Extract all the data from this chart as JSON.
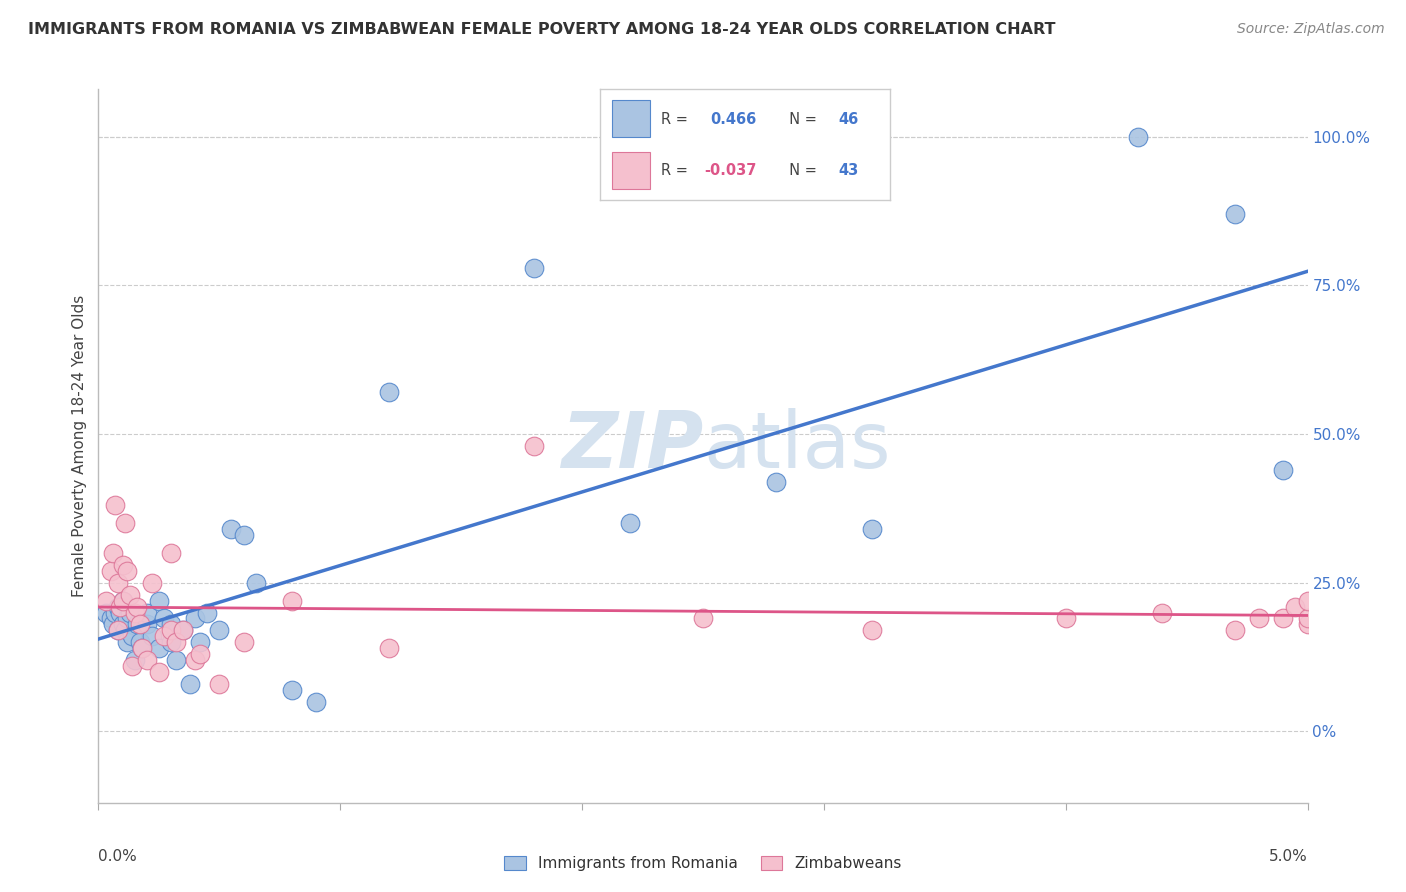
{
  "title": "IMMIGRANTS FROM ROMANIA VS ZIMBABWEAN FEMALE POVERTY AMONG 18-24 YEAR OLDS CORRELATION CHART",
  "source": "Source: ZipAtlas.com",
  "ylabel": "Female Poverty Among 18-24 Year Olds",
  "right_ytick_vals": [
    0.0,
    0.25,
    0.5,
    0.75,
    1.0
  ],
  "right_ytick_labels": [
    "0%",
    "25.0%",
    "50.0%",
    "75.0%",
    "100.0%"
  ],
  "legend_r1": "R =  0.466",
  "legend_n1": "N = 46",
  "legend_r2": "R = -0.037",
  "legend_n2": "N = 43",
  "blue_color": "#aac4e2",
  "blue_edge_color": "#5588cc",
  "blue_line_color": "#4477cc",
  "pink_color": "#f5c0ce",
  "pink_edge_color": "#dd7799",
  "pink_line_color": "#dd5588",
  "watermark_color": "#d5e2ef",
  "background_color": "#ffffff",
  "ylim_min": -0.12,
  "ylim_max": 1.08,
  "xlim_min": 0.0,
  "xlim_max": 0.05,
  "blue_scatter_x": [
    0.0003,
    0.0005,
    0.0006,
    0.0007,
    0.0008,
    0.0008,
    0.0009,
    0.001,
    0.001,
    0.0011,
    0.0012,
    0.0012,
    0.0013,
    0.0014,
    0.0015,
    0.0016,
    0.0017,
    0.0018,
    0.002,
    0.002,
    0.0022,
    0.0025,
    0.0025,
    0.0027,
    0.003,
    0.003,
    0.0032,
    0.0035,
    0.0038,
    0.004,
    0.0042,
    0.0045,
    0.005,
    0.0055,
    0.006,
    0.0065,
    0.008,
    0.009,
    0.012,
    0.018,
    0.022,
    0.028,
    0.032,
    0.043,
    0.047,
    0.049
  ],
  "blue_scatter_y": [
    0.2,
    0.19,
    0.18,
    0.2,
    0.21,
    0.17,
    0.2,
    0.18,
    0.22,
    0.17,
    0.19,
    0.15,
    0.2,
    0.16,
    0.12,
    0.18,
    0.15,
    0.14,
    0.18,
    0.2,
    0.16,
    0.22,
    0.14,
    0.19,
    0.15,
    0.18,
    0.12,
    0.17,
    0.08,
    0.19,
    0.15,
    0.2,
    0.17,
    0.34,
    0.33,
    0.25,
    0.07,
    0.05,
    0.57,
    0.78,
    0.35,
    0.42,
    0.34,
    1.0,
    0.87,
    0.44
  ],
  "pink_scatter_x": [
    0.0003,
    0.0005,
    0.0006,
    0.0007,
    0.0008,
    0.0008,
    0.0009,
    0.001,
    0.001,
    0.0011,
    0.0012,
    0.0013,
    0.0014,
    0.0015,
    0.0016,
    0.0017,
    0.0018,
    0.002,
    0.0022,
    0.0025,
    0.0027,
    0.003,
    0.003,
    0.0032,
    0.0035,
    0.004,
    0.0042,
    0.005,
    0.006,
    0.008,
    0.012,
    0.018,
    0.025,
    0.032,
    0.04,
    0.044,
    0.047,
    0.048,
    0.049,
    0.0495,
    0.05,
    0.05,
    0.05
  ],
  "pink_scatter_y": [
    0.22,
    0.27,
    0.3,
    0.38,
    0.25,
    0.17,
    0.21,
    0.28,
    0.22,
    0.35,
    0.27,
    0.23,
    0.11,
    0.2,
    0.21,
    0.18,
    0.14,
    0.12,
    0.25,
    0.1,
    0.16,
    0.3,
    0.17,
    0.15,
    0.17,
    0.12,
    0.13,
    0.08,
    0.15,
    0.22,
    0.14,
    0.48,
    0.19,
    0.17,
    0.19,
    0.2,
    0.17,
    0.19,
    0.19,
    0.21,
    0.18,
    0.19,
    0.22
  ]
}
